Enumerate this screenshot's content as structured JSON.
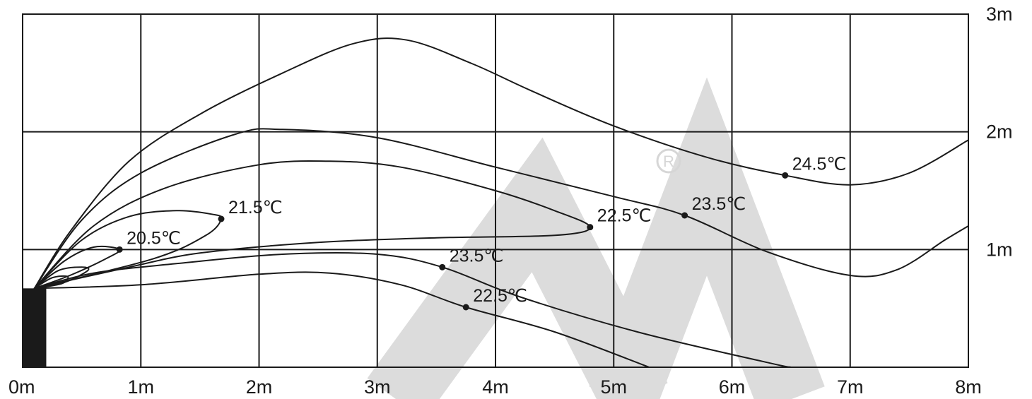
{
  "chart_data": {
    "type": "line",
    "title": "",
    "xlabel": "",
    "ylabel": "",
    "xlim": [
      0,
      8
    ],
    "ylim": [
      0,
      3
    ],
    "grid": true,
    "x_ticks": [
      {
        "value": 0,
        "label": "0m"
      },
      {
        "value": 1,
        "label": "1m"
      },
      {
        "value": 2,
        "label": "2m"
      },
      {
        "value": 3,
        "label": "3m"
      },
      {
        "value": 4,
        "label": "4m"
      },
      {
        "value": 5,
        "label": "5m"
      },
      {
        "value": 6,
        "label": "6m"
      },
      {
        "value": 7,
        "label": "7m"
      },
      {
        "value": 8,
        "label": "8m"
      }
    ],
    "y_ticks": [
      {
        "value": 1,
        "label": "1m"
      },
      {
        "value": 2,
        "label": "2m"
      },
      {
        "value": 3,
        "label": "3m"
      }
    ],
    "source": {
      "x_range": [
        0,
        0.2
      ],
      "y_range": [
        0,
        0.67
      ]
    },
    "isotherms": [
      {
        "label": "24.5℃",
        "marker": [
          6.45,
          1.63
        ],
        "points": [
          [
            0.1,
            0.67
          ],
          [
            0.4,
            1.15
          ],
          [
            0.9,
            1.75
          ],
          [
            1.5,
            2.15
          ],
          [
            2.2,
            2.5
          ],
          [
            2.8,
            2.75
          ],
          [
            3.25,
            2.78
          ],
          [
            3.8,
            2.58
          ],
          [
            4.3,
            2.35
          ],
          [
            5.0,
            2.05
          ],
          [
            5.8,
            1.78
          ],
          [
            6.45,
            1.63
          ],
          [
            7.0,
            1.55
          ],
          [
            7.5,
            1.65
          ],
          [
            8.0,
            1.93
          ]
        ]
      },
      {
        "label": "23.5℃",
        "marker": [
          5.6,
          1.29
        ],
        "points": [
          [
            0.1,
            0.67
          ],
          [
            0.5,
            1.25
          ],
          [
            1.0,
            1.65
          ],
          [
            1.8,
            1.98
          ],
          [
            2.2,
            2.02
          ],
          [
            3.0,
            1.95
          ],
          [
            4.0,
            1.7
          ],
          [
            5.0,
            1.45
          ],
          [
            5.6,
            1.29
          ],
          [
            6.3,
            0.98
          ],
          [
            7.0,
            0.78
          ],
          [
            7.4,
            0.83
          ],
          [
            7.8,
            1.08
          ],
          [
            8.0,
            1.2
          ]
        ]
      },
      {
        "label": "22.5℃",
        "marker": [
          4.8,
          1.19
        ],
        "points": [
          [
            0.1,
            0.67
          ],
          [
            0.6,
            1.2
          ],
          [
            1.2,
            1.52
          ],
          [
            2.0,
            1.72
          ],
          [
            2.6,
            1.75
          ],
          [
            3.2,
            1.7
          ],
          [
            4.0,
            1.5
          ],
          [
            4.5,
            1.33
          ],
          [
            4.8,
            1.19
          ],
          [
            4.5,
            1.12
          ],
          [
            3.5,
            1.1
          ],
          [
            2.5,
            1.06
          ],
          [
            1.5,
            0.97
          ],
          [
            0.9,
            0.85
          ],
          [
            0.1,
            0.67
          ]
        ]
      },
      {
        "label": "21.5℃",
        "marker": [
          1.68,
          1.26
        ],
        "points": [
          [
            0.1,
            0.67
          ],
          [
            0.5,
            1.08
          ],
          [
            0.9,
            1.28
          ],
          [
            1.3,
            1.33
          ],
          [
            1.6,
            1.3
          ],
          [
            1.68,
            1.26
          ],
          [
            1.55,
            1.12
          ],
          [
            1.1,
            0.92
          ],
          [
            0.1,
            0.67
          ]
        ]
      },
      {
        "label": "20.5℃",
        "marker": [
          0.82,
          1.0
        ],
        "points": [
          [
            0.1,
            0.67
          ],
          [
            0.35,
            0.9
          ],
          [
            0.6,
            1.02
          ],
          [
            0.82,
            1.0
          ],
          [
            0.7,
            0.92
          ],
          [
            0.4,
            0.78
          ],
          [
            0.1,
            0.67
          ]
        ]
      },
      {
        "label": "",
        "marker": null,
        "points": [
          [
            0.1,
            0.67
          ],
          [
            0.3,
            0.82
          ],
          [
            0.5,
            0.85
          ],
          [
            0.55,
            0.82
          ],
          [
            0.35,
            0.72
          ],
          [
            0.1,
            0.67
          ]
        ]
      },
      {
        "label": "",
        "marker": null,
        "points": [
          [
            0.1,
            0.67
          ],
          [
            0.25,
            0.76
          ],
          [
            0.38,
            0.77
          ],
          [
            0.33,
            0.71
          ],
          [
            0.1,
            0.67
          ]
        ]
      },
      {
        "label": "23.5℃",
        "marker": [
          3.55,
          0.85
        ],
        "points": [
          [
            0.1,
            0.67
          ],
          [
            0.6,
            0.8
          ],
          [
            1.3,
            0.88
          ],
          [
            2.2,
            0.96
          ],
          [
            3.0,
            0.96
          ],
          [
            3.55,
            0.85
          ],
          [
            4.2,
            0.6
          ],
          [
            5.2,
            0.3
          ],
          [
            6.3,
            0.04
          ],
          [
            6.5,
            0
          ]
        ]
      },
      {
        "label": "22.5℃",
        "marker": [
          3.75,
          0.51
        ],
        "points": [
          [
            0.1,
            0.67
          ],
          [
            1.0,
            0.7
          ],
          [
            2.0,
            0.79
          ],
          [
            2.6,
            0.8
          ],
          [
            3.2,
            0.7
          ],
          [
            3.75,
            0.51
          ],
          [
            4.5,
            0.3
          ],
          [
            5.3,
            0.0
          ]
        ]
      }
    ]
  }
}
